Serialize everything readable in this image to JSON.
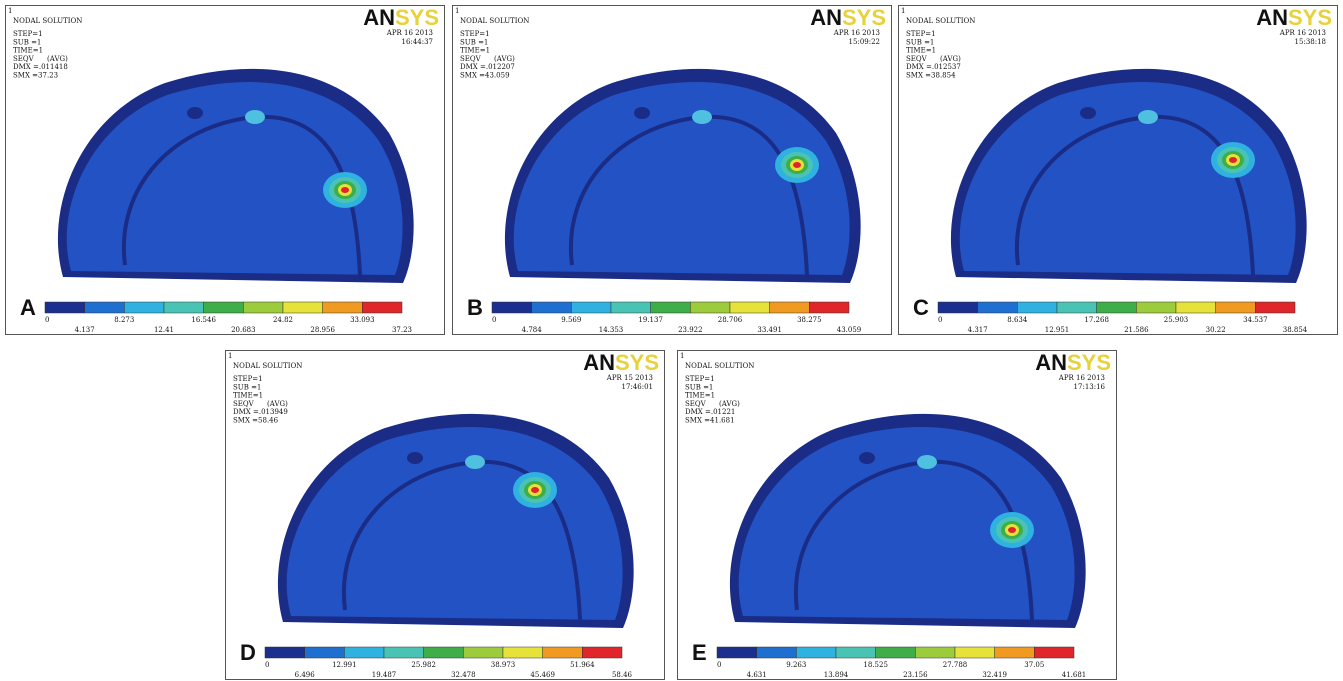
{
  "panels": [
    {
      "label": "A",
      "corner": "1",
      "title": "NODAL SOLUTION",
      "lines": [
        "STEP=1",
        "SUB =1",
        "TIME=1",
        "SEQV      (AVG)",
        "DMX =.011418",
        "SMX =37.23"
      ],
      "date": "APR 16 2013",
      "time": "16:44:37",
      "logo_main": "AN",
      "logo_accent": "SYS",
      "legend": [
        0,
        4.137,
        8.273,
        12.41,
        16.546,
        20.683,
        24.82,
        28.956,
        33.093,
        37.23
      ]
    },
    {
      "label": "B",
      "corner": "1",
      "title": "NODAL SOLUTION",
      "lines": [
        "STEP=1",
        "SUB =1",
        "TIME=1",
        "SEQV      (AVG)",
        "DMX =.012207",
        "SMX =43.059"
      ],
      "date": "APR 16 2013",
      "time": "15:09:22",
      "logo_main": "AN",
      "logo_accent": "SYS",
      "legend": [
        0,
        4.784,
        9.569,
        14.353,
        19.137,
        23.922,
        28.706,
        33.491,
        38.275,
        43.059
      ]
    },
    {
      "label": "C",
      "corner": "1",
      "title": "NODAL SOLUTION",
      "lines": [
        "STEP=1",
        "SUB =1",
        "TIME=1",
        "SEQV      (AVG)",
        "DMX =.012537",
        "SMX =38.854"
      ],
      "date": "APR 16 2013",
      "time": "15:38:18",
      "logo_main": "AN",
      "logo_accent": "SYS",
      "legend": [
        0,
        4.317,
        8.634,
        12.951,
        17.268,
        21.586,
        25.903,
        30.22,
        34.537,
        38.854
      ]
    },
    {
      "label": "D",
      "corner": "1",
      "title": "NODAL SOLUTION",
      "lines": [
        "STEP=1",
        "SUB =1",
        "TIME=1",
        "SEQV      (AVG)",
        "DMX =.013949",
        "SMX =58.46"
      ],
      "date": "APR 15 2013",
      "time": "17:46:01",
      "logo_main": "AN",
      "logo_accent": "SYS",
      "legend": [
        0,
        6.496,
        12.991,
        19.487,
        25.982,
        32.478,
        38.973,
        45.469,
        51.964,
        58.46
      ]
    },
    {
      "label": "E",
      "corner": "1",
      "title": "NODAL SOLUTION",
      "lines": [
        "STEP=1",
        "SUB =1",
        "TIME=1",
        "SEQV      (AVG)",
        "DMX =.01221",
        "SMX =41.681"
      ],
      "date": "APR 16 2013",
      "time": "17:13:16",
      "logo_main": "AN",
      "logo_accent": "SYS",
      "legend": [
        0,
        4.631,
        9.263,
        13.894,
        18.525,
        23.156,
        27.788,
        32.419,
        37.05,
        41.681
      ]
    }
  ]
}
